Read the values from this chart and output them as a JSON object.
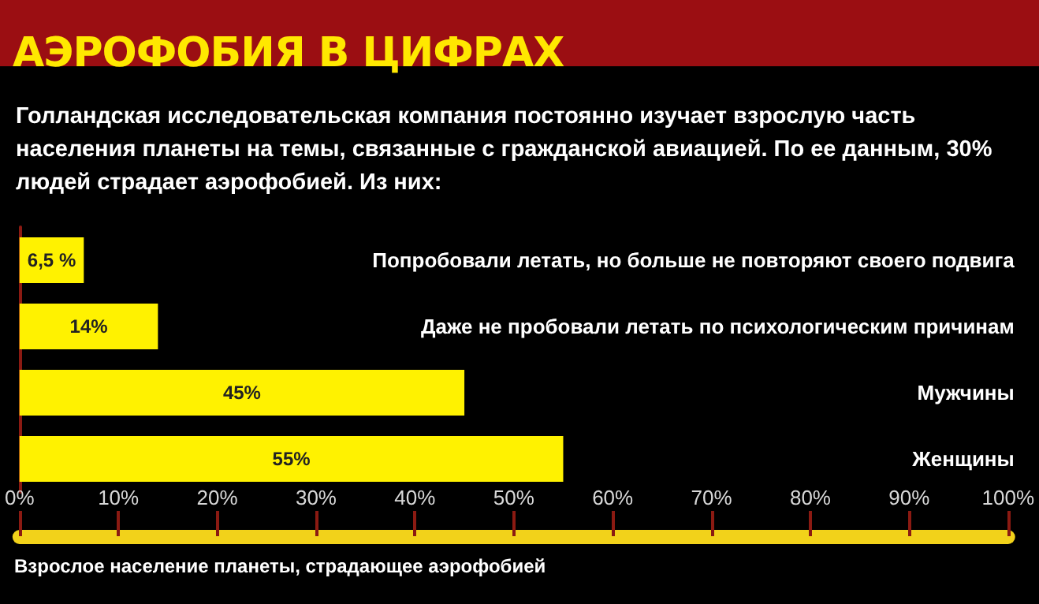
{
  "chart_data": {
    "type": "bar",
    "orientation": "horizontal",
    "title": "АЭРОФОБИЯ В ЦИФРАХ",
    "subtitle": "Голландская исследовательская компания постоянно изучает взрослую часть населения планеты на темы, связанные с гражданской авиацией. По ее данным, 30% людей страдает аэрофобией. Из них:",
    "xlabel": "Взрослое население планеты, страдающее аэрофобией",
    "categories": [
      "Попробовали летать, но больше не повторяют своего подвига",
      "Даже не пробовали летать по психологическим причинам",
      "Мужчины",
      "Женщины"
    ],
    "values": [
      6.5,
      14,
      45,
      55
    ],
    "value_labels": [
      "6,5 %",
      "14%",
      "45%",
      "55%"
    ],
    "color": "#fff200",
    "xlim": [
      0,
      100
    ],
    "xticks": [
      {
        "value": 0,
        "label": "0%"
      },
      {
        "value": 10,
        "label": "10%"
      },
      {
        "value": 20,
        "label": "20%"
      },
      {
        "value": 30,
        "label": "30%"
      },
      {
        "value": 40,
        "label": "40%"
      },
      {
        "value": 50,
        "label": "50%"
      },
      {
        "value": 60,
        "label": "60%"
      },
      {
        "value": 70,
        "label": "70%"
      },
      {
        "value": 80,
        "label": "80%"
      },
      {
        "value": 90,
        "label": "90%"
      },
      {
        "value": 100,
        "label": "100%"
      }
    ],
    "grid": false
  }
}
